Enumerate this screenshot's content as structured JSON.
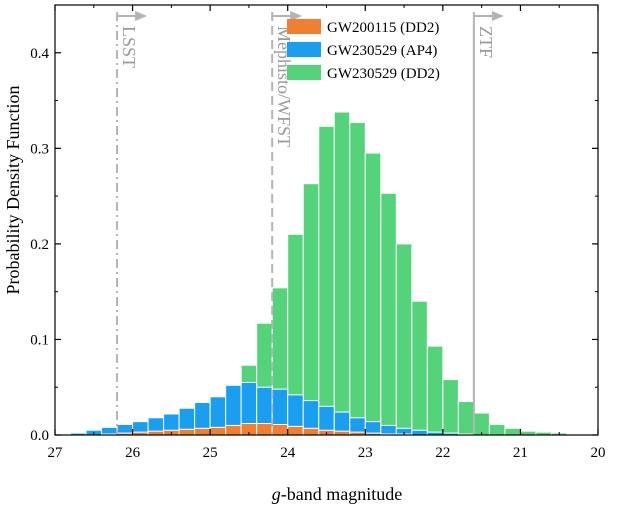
{
  "chart_data": {
    "type": "bar",
    "stacked": true,
    "xlabel_prefix": "g",
    "xlabel_suffix": "-band magnitude",
    "ylabel": "Probability Density Function",
    "xlim": [
      27,
      20
    ],
    "ylim": [
      0,
      0.45
    ],
    "xticks": [
      27,
      26,
      25,
      24,
      23,
      22,
      21,
      20
    ],
    "yticks": [
      0.0,
      0.1,
      0.2,
      0.3,
      0.4
    ],
    "ytick_labels": [
      "0.0",
      "0.1",
      "0.2",
      "0.3",
      "0.4"
    ],
    "bin_width": 0.2,
    "bin_centers": [
      26.9,
      26.7,
      26.5,
      26.3,
      26.1,
      25.9,
      25.7,
      25.5,
      25.3,
      25.1,
      24.9,
      24.7,
      24.5,
      24.3,
      24.1,
      23.9,
      23.7,
      23.5,
      23.3,
      23.1,
      22.9,
      22.7,
      22.5,
      22.3,
      22.1,
      21.9,
      21.7,
      21.5,
      21.3,
      21.1,
      20.9,
      20.7,
      20.5
    ],
    "series": [
      {
        "name": "GW230529 (DD2)",
        "color": "#55d37a",
        "values": [
          0.002,
          0.003,
          0.004,
          0.006,
          0.008,
          0.01,
          0.014,
          0.018,
          0.022,
          0.027,
          0.034,
          0.053,
          0.073,
          0.117,
          0.154,
          0.21,
          0.263,
          0.323,
          0.338,
          0.327,
          0.295,
          0.253,
          0.2,
          0.14,
          0.093,
          0.058,
          0.035,
          0.023,
          0.011,
          0.007,
          0.004,
          0.003,
          0.002
        ]
      },
      {
        "name": "GW230529 (AP4)",
        "color": "#1a9ff0",
        "values": [
          0.001,
          0.002,
          0.005,
          0.008,
          0.011,
          0.014,
          0.018,
          0.022,
          0.028,
          0.034,
          0.04,
          0.052,
          0.055,
          0.05,
          0.048,
          0.042,
          0.036,
          0.03,
          0.024,
          0.018,
          0.014,
          0.01,
          0.007,
          0.005,
          0.003,
          0.002,
          0.001,
          0.0,
          0.0,
          0.0,
          0.0,
          0.0,
          0.0
        ]
      },
      {
        "name": "GW200115 (DD2)",
        "color": "#f08030",
        "values": [
          0.0,
          0.0,
          0.0,
          0.001,
          0.002,
          0.003,
          0.004,
          0.005,
          0.006,
          0.007,
          0.008,
          0.01,
          0.012,
          0.012,
          0.011,
          0.009,
          0.007,
          0.005,
          0.004,
          0.003,
          0.002,
          0.001,
          0.001,
          0.0,
          0.0,
          0.0,
          0.0,
          0.0,
          0.0,
          0.0,
          0.0,
          0.0,
          0.0
        ]
      }
    ],
    "legend_order": [
      "GW200115 (DD2)",
      "GW230529 (AP4)",
      "GW230529 (DD2)"
    ],
    "legend_position": "top-right",
    "limits": [
      {
        "name": "LSST",
        "x": 26.2,
        "style": "dashdot",
        "color": "#b4b4b4"
      },
      {
        "name": "Mephisto/WFST",
        "x": 24.2,
        "style": "dashed",
        "color": "#b4b4b4"
      },
      {
        "name": "ZTF",
        "x": 21.6,
        "style": "solid",
        "color": "#b4b4b4"
      }
    ]
  }
}
